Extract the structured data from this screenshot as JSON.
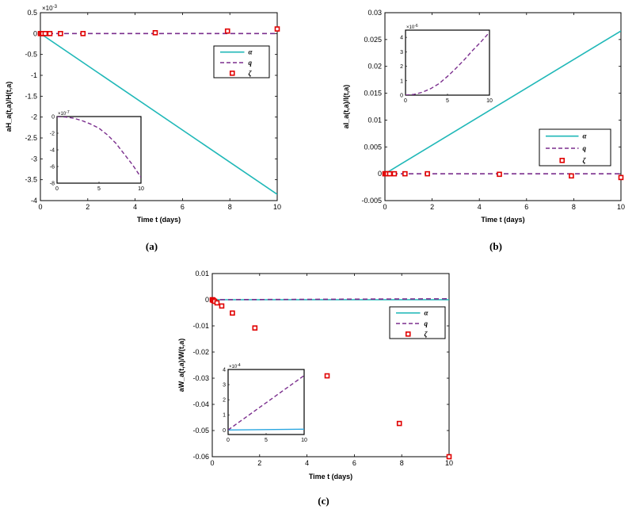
{
  "chart_data": [
    {
      "id": "a",
      "type": "line",
      "panel_label": "(a)",
      "xlabel": "Time t (days)",
      "ylabel": "aH_a(t,a)/H(t,a)",
      "xlim": [
        0,
        10
      ],
      "ylim": [
        -4,
        0.5
      ],
      "y_exponent": "×10",
      "y_exponent_power": "-3",
      "xticks": [
        0,
        2,
        4,
        6,
        8,
        10
      ],
      "yticks": [
        -4,
        -3.5,
        -3,
        -2.5,
        -2,
        -1.5,
        -1,
        -0.5,
        0,
        0.5
      ],
      "legend": {
        "position": "upper-right",
        "entries": [
          "α",
          "q",
          "ζ"
        ]
      },
      "series": [
        {
          "name": "α",
          "style": "solid",
          "color": "#20b8b8",
          "x": [
            0,
            10
          ],
          "y": [
            0,
            -3.85
          ]
        },
        {
          "name": "q",
          "style": "dashed",
          "color": "#7b2f8e",
          "x": [
            0,
            10
          ],
          "y": [
            0,
            0
          ]
        },
        {
          "name": "ζ",
          "style": "markers",
          "color": "#e00000",
          "x": [
            0,
            0.05,
            0.1,
            0.2,
            0.4,
            0.85,
            1.8,
            4.85,
            7.9,
            10
          ],
          "y": [
            0,
            0,
            0,
            0,
            0,
            0,
            0,
            0.02,
            0.06,
            0.11
          ]
        }
      ],
      "inset": {
        "xlim": [
          0,
          10
        ],
        "ylim": [
          -8,
          0
        ],
        "xticks": [
          0,
          5,
          10
        ],
        "yticks": [
          -8,
          -6,
          -4,
          -2,
          0
        ],
        "y_exponent": "×10",
        "y_exponent_power": "-7",
        "series": [
          {
            "style": "dashed",
            "color": "#7b2f8e",
            "x": [
              0,
              1,
              2,
              3,
              4,
              5,
              6,
              7,
              8,
              9,
              10
            ],
            "y": [
              0,
              -0.05,
              -0.2,
              -0.5,
              -0.9,
              -1.4,
              -2.2,
              -3.2,
              -4.5,
              -5.8,
              -7.3
            ]
          }
        ]
      }
    },
    {
      "id": "b",
      "type": "line",
      "panel_label": "(b)",
      "xlabel": "Time t (days)",
      "ylabel": "aI_a(t,a)/I(t,a)",
      "xlim": [
        0,
        10
      ],
      "ylim": [
        -0.005,
        0.03
      ],
      "xticks": [
        0,
        2,
        4,
        6,
        8,
        10
      ],
      "yticks": [
        -0.005,
        0,
        0.005,
        0.01,
        0.015,
        0.02,
        0.025,
        0.03
      ],
      "ytick_labels": [
        "-0.005",
        "0",
        "0.005",
        "0.01",
        "0.015",
        "0.02",
        "0.025",
        "0.03"
      ],
      "legend": {
        "position": "center-right",
        "entries": [
          "α",
          "q",
          "ζ"
        ]
      },
      "series": [
        {
          "name": "α",
          "style": "solid",
          "color": "#20b8b8",
          "x": [
            0,
            10
          ],
          "y": [
            0,
            0.0266
          ]
        },
        {
          "name": "q",
          "style": "dashed",
          "color": "#7b2f8e",
          "x": [
            0,
            10
          ],
          "y": [
            0,
            0
          ]
        },
        {
          "name": "ζ",
          "style": "markers",
          "color": "#e00000",
          "x": [
            0,
            0.05,
            0.1,
            0.2,
            0.4,
            0.85,
            1.8,
            4.85,
            7.9,
            10
          ],
          "y": [
            0,
            0,
            0,
            0,
            0,
            0,
            0,
            -0.0001,
            -0.0004,
            -0.0007
          ]
        }
      ],
      "inset": {
        "xlim": [
          0,
          10
        ],
        "ylim": [
          0,
          4.5
        ],
        "xticks": [
          0,
          5,
          10
        ],
        "yticks": [
          0,
          1,
          2,
          3,
          4
        ],
        "y_exponent": "×10",
        "y_exponent_power": "-6",
        "series": [
          {
            "style": "dashed",
            "color": "#7b2f8e",
            "x": [
              0,
              1,
              2,
              3,
              4,
              5,
              6,
              7,
              8,
              9,
              10
            ],
            "y": [
              0,
              0.05,
              0.2,
              0.45,
              0.8,
              1.3,
              1.85,
              2.45,
              3.1,
              3.7,
              4.35
            ]
          }
        ]
      }
    },
    {
      "id": "c",
      "type": "line",
      "panel_label": "(c)",
      "xlabel": "Time t (days)",
      "ylabel": "aW_a(t,a)/W(t,a)",
      "xlim": [
        0,
        10
      ],
      "ylim": [
        -0.06,
        0.01
      ],
      "xticks": [
        0,
        2,
        4,
        6,
        8,
        10
      ],
      "yticks": [
        -0.06,
        -0.05,
        -0.04,
        -0.03,
        -0.02,
        -0.01,
        0,
        0.01
      ],
      "ytick_labels": [
        "-0.06",
        "-0.05",
        "-0.04",
        "-0.03",
        "-0.02",
        "-0.01",
        "0",
        "0.01"
      ],
      "legend": {
        "position": "upper-right",
        "entries": [
          "α",
          "q",
          "ζ"
        ]
      },
      "series": [
        {
          "name": "α",
          "style": "solid",
          "color": "#20b8b8",
          "x": [
            0,
            10
          ],
          "y": [
            0,
            0
          ]
        },
        {
          "name": "q",
          "style": "dashed",
          "color": "#7b2f8e",
          "x": [
            0,
            10
          ],
          "y": [
            0,
            0.00035
          ]
        },
        {
          "name": "ζ",
          "style": "markers",
          "color": "#e00000",
          "x": [
            0,
            0.02,
            0.05,
            0.1,
            0.2,
            0.4,
            0.85,
            1.8,
            4.85,
            7.9,
            10
          ],
          "y": [
            0,
            -0.0001,
            -0.0003,
            -0.0006,
            -0.0012,
            -0.0024,
            -0.0051,
            -0.0108,
            -0.0291,
            -0.0473,
            -0.06
          ]
        }
      ],
      "inset": {
        "xlim": [
          0,
          10
        ],
        "ylim": [
          -0.3,
          4
        ],
        "xticks": [
          0,
          5,
          10
        ],
        "yticks": [
          0,
          1,
          2,
          3,
          4
        ],
        "y_exponent": "×10",
        "y_exponent_power": "-4",
        "series": [
          {
            "style": "solid",
            "color": "#2aa6e0",
            "x": [
              0,
              10
            ],
            "y": [
              0,
              0.05
            ]
          },
          {
            "style": "dashed",
            "color": "#7b2f8e",
            "x": [
              0,
              10
            ],
            "y": [
              0,
              3.6
            ]
          }
        ]
      }
    }
  ]
}
